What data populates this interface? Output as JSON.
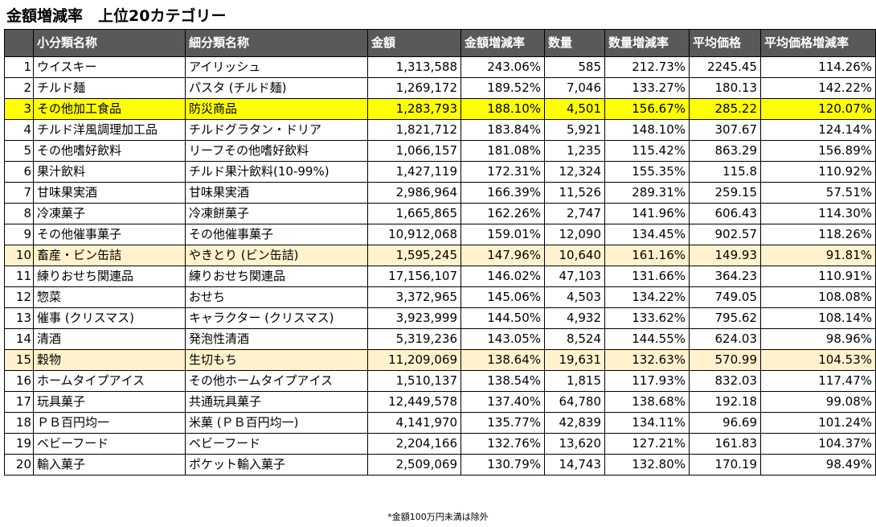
{
  "title": "金額増減率　上位20カテゴリー",
  "columns": [
    "",
    "小分類名称",
    "細分類名称",
    "金額",
    "金額増減率",
    "数量",
    "数量増減率",
    "平均価格",
    "平均価格増減率"
  ],
  "highlight_colors": {
    "yellow": "#ffff00",
    "cream": "#fff2cc",
    "header": "#595959"
  },
  "rows": [
    {
      "rank": "1",
      "category": "ウイスキー",
      "subcategory": "アイリッシュ",
      "amount": "1,313,588",
      "amount_rate": "243.06%",
      "quantity": "585",
      "quantity_rate": "212.73%",
      "avg_price": "2245.45",
      "avg_price_rate": "114.26%",
      "highlight": ""
    },
    {
      "rank": "2",
      "category": "チルド麺",
      "subcategory": "パスタ (チルド麺)",
      "amount": "1,269,172",
      "amount_rate": "189.52%",
      "quantity": "7,046",
      "quantity_rate": "133.27%",
      "avg_price": "180.13",
      "avg_price_rate": "142.22%",
      "highlight": ""
    },
    {
      "rank": "3",
      "category": "その他加工食品",
      "subcategory": "防災商品",
      "amount": "1,283,793",
      "amount_rate": "188.10%",
      "quantity": "4,501",
      "quantity_rate": "156.67%",
      "avg_price": "285.22",
      "avg_price_rate": "120.07%",
      "highlight": "yellow"
    },
    {
      "rank": "4",
      "category": "チルド洋風調理加工品",
      "subcategory": "チルドグラタン・ドリア",
      "amount": "1,821,712",
      "amount_rate": "183.84%",
      "quantity": "5,921",
      "quantity_rate": "148.10%",
      "avg_price": "307.67",
      "avg_price_rate": "124.14%",
      "highlight": ""
    },
    {
      "rank": "5",
      "category": "その他嗜好飲料",
      "subcategory": "リーフその他嗜好飲料",
      "amount": "1,066,157",
      "amount_rate": "181.08%",
      "quantity": "1,235",
      "quantity_rate": "115.42%",
      "avg_price": "863.29",
      "avg_price_rate": "156.89%",
      "highlight": ""
    },
    {
      "rank": "6",
      "category": "果汁飲料",
      "subcategory": "チルド果汁飲料(10-99%)",
      "amount": "1,427,119",
      "amount_rate": "172.31%",
      "quantity": "12,324",
      "quantity_rate": "155.35%",
      "avg_price": "115.8",
      "avg_price_rate": "110.92%",
      "highlight": ""
    },
    {
      "rank": "7",
      "category": "甘味果実酒",
      "subcategory": "甘味果実酒",
      "amount": "2,986,964",
      "amount_rate": "166.39%",
      "quantity": "11,526",
      "quantity_rate": "289.31%",
      "avg_price": "259.15",
      "avg_price_rate": "57.51%",
      "highlight": ""
    },
    {
      "rank": "8",
      "category": "冷凍菓子",
      "subcategory": "冷凍餅菓子",
      "amount": "1,665,865",
      "amount_rate": "162.26%",
      "quantity": "2,747",
      "quantity_rate": "141.96%",
      "avg_price": "606.43",
      "avg_price_rate": "114.30%",
      "highlight": ""
    },
    {
      "rank": "9",
      "category": "その他催事菓子",
      "subcategory": "その他催事菓子",
      "amount": "10,912,068",
      "amount_rate": "159.01%",
      "quantity": "12,090",
      "quantity_rate": "134.45%",
      "avg_price": "902.57",
      "avg_price_rate": "118.26%",
      "highlight": ""
    },
    {
      "rank": "10",
      "category": "畜産・ビン缶詰",
      "subcategory": "やきとり (ビン缶詰)",
      "amount": "1,595,245",
      "amount_rate": "147.96%",
      "quantity": "10,640",
      "quantity_rate": "161.16%",
      "avg_price": "149.93",
      "avg_price_rate": "91.81%",
      "highlight": "cream"
    },
    {
      "rank": "11",
      "category": "練りおせち関連品",
      "subcategory": "練りおせち関連品",
      "amount": "17,156,107",
      "amount_rate": "146.02%",
      "quantity": "47,103",
      "quantity_rate": "131.66%",
      "avg_price": "364.23",
      "avg_price_rate": "110.91%",
      "highlight": ""
    },
    {
      "rank": "12",
      "category": "惣菜",
      "subcategory": "おせち",
      "amount": "3,372,965",
      "amount_rate": "145.06%",
      "quantity": "4,503",
      "quantity_rate": "134.22%",
      "avg_price": "749.05",
      "avg_price_rate": "108.08%",
      "highlight": ""
    },
    {
      "rank": "13",
      "category": "催事 (クリスマス)",
      "subcategory": "キャラクター (クリスマス)",
      "amount": "3,923,999",
      "amount_rate": "144.50%",
      "quantity": "4,932",
      "quantity_rate": "133.62%",
      "avg_price": "795.62",
      "avg_price_rate": "108.14%",
      "highlight": ""
    },
    {
      "rank": "14",
      "category": "清酒",
      "subcategory": "発泡性清酒",
      "amount": "5,319,236",
      "amount_rate": "143.05%",
      "quantity": "8,524",
      "quantity_rate": "144.55%",
      "avg_price": "624.03",
      "avg_price_rate": "98.96%",
      "highlight": ""
    },
    {
      "rank": "15",
      "category": "穀物",
      "subcategory": "生切もち",
      "amount": "11,209,069",
      "amount_rate": "138.64%",
      "quantity": "19,631",
      "quantity_rate": "132.63%",
      "avg_price": "570.99",
      "avg_price_rate": "104.53%",
      "highlight": "cream"
    },
    {
      "rank": "16",
      "category": "ホームタイプアイス",
      "subcategory": "その他ホームタイプアイス",
      "amount": "1,510,137",
      "amount_rate": "138.54%",
      "quantity": "1,815",
      "quantity_rate": "117.93%",
      "avg_price": "832.03",
      "avg_price_rate": "117.47%",
      "highlight": ""
    },
    {
      "rank": "17",
      "category": "玩具菓子",
      "subcategory": "共通玩具菓子",
      "amount": "12,449,578",
      "amount_rate": "137.40%",
      "quantity": "64,780",
      "quantity_rate": "138.68%",
      "avg_price": "192.18",
      "avg_price_rate": "99.08%",
      "highlight": ""
    },
    {
      "rank": "18",
      "category": "ＰＢ百円均一",
      "subcategory": "米菓 (ＰＢ百円均一)",
      "amount": "4,141,970",
      "amount_rate": "135.77%",
      "quantity": "42,839",
      "quantity_rate": "134.11%",
      "avg_price": "96.69",
      "avg_price_rate": "101.24%",
      "highlight": ""
    },
    {
      "rank": "19",
      "category": "ベビーフード",
      "subcategory": "ベビーフード",
      "amount": "2,204,166",
      "amount_rate": "132.76%",
      "quantity": "13,620",
      "quantity_rate": "127.21%",
      "avg_price": "161.83",
      "avg_price_rate": "104.37%",
      "highlight": ""
    },
    {
      "rank": "20",
      "category": "輸入菓子",
      "subcategory": "ポケット輸入菓子",
      "amount": "2,509,069",
      "amount_rate": "130.79%",
      "quantity": "14,743",
      "quantity_rate": "132.80%",
      "avg_price": "170.19",
      "avg_price_rate": "98.49%",
      "highlight": ""
    }
  ],
  "footnote": "*金額100万円未満は除外"
}
